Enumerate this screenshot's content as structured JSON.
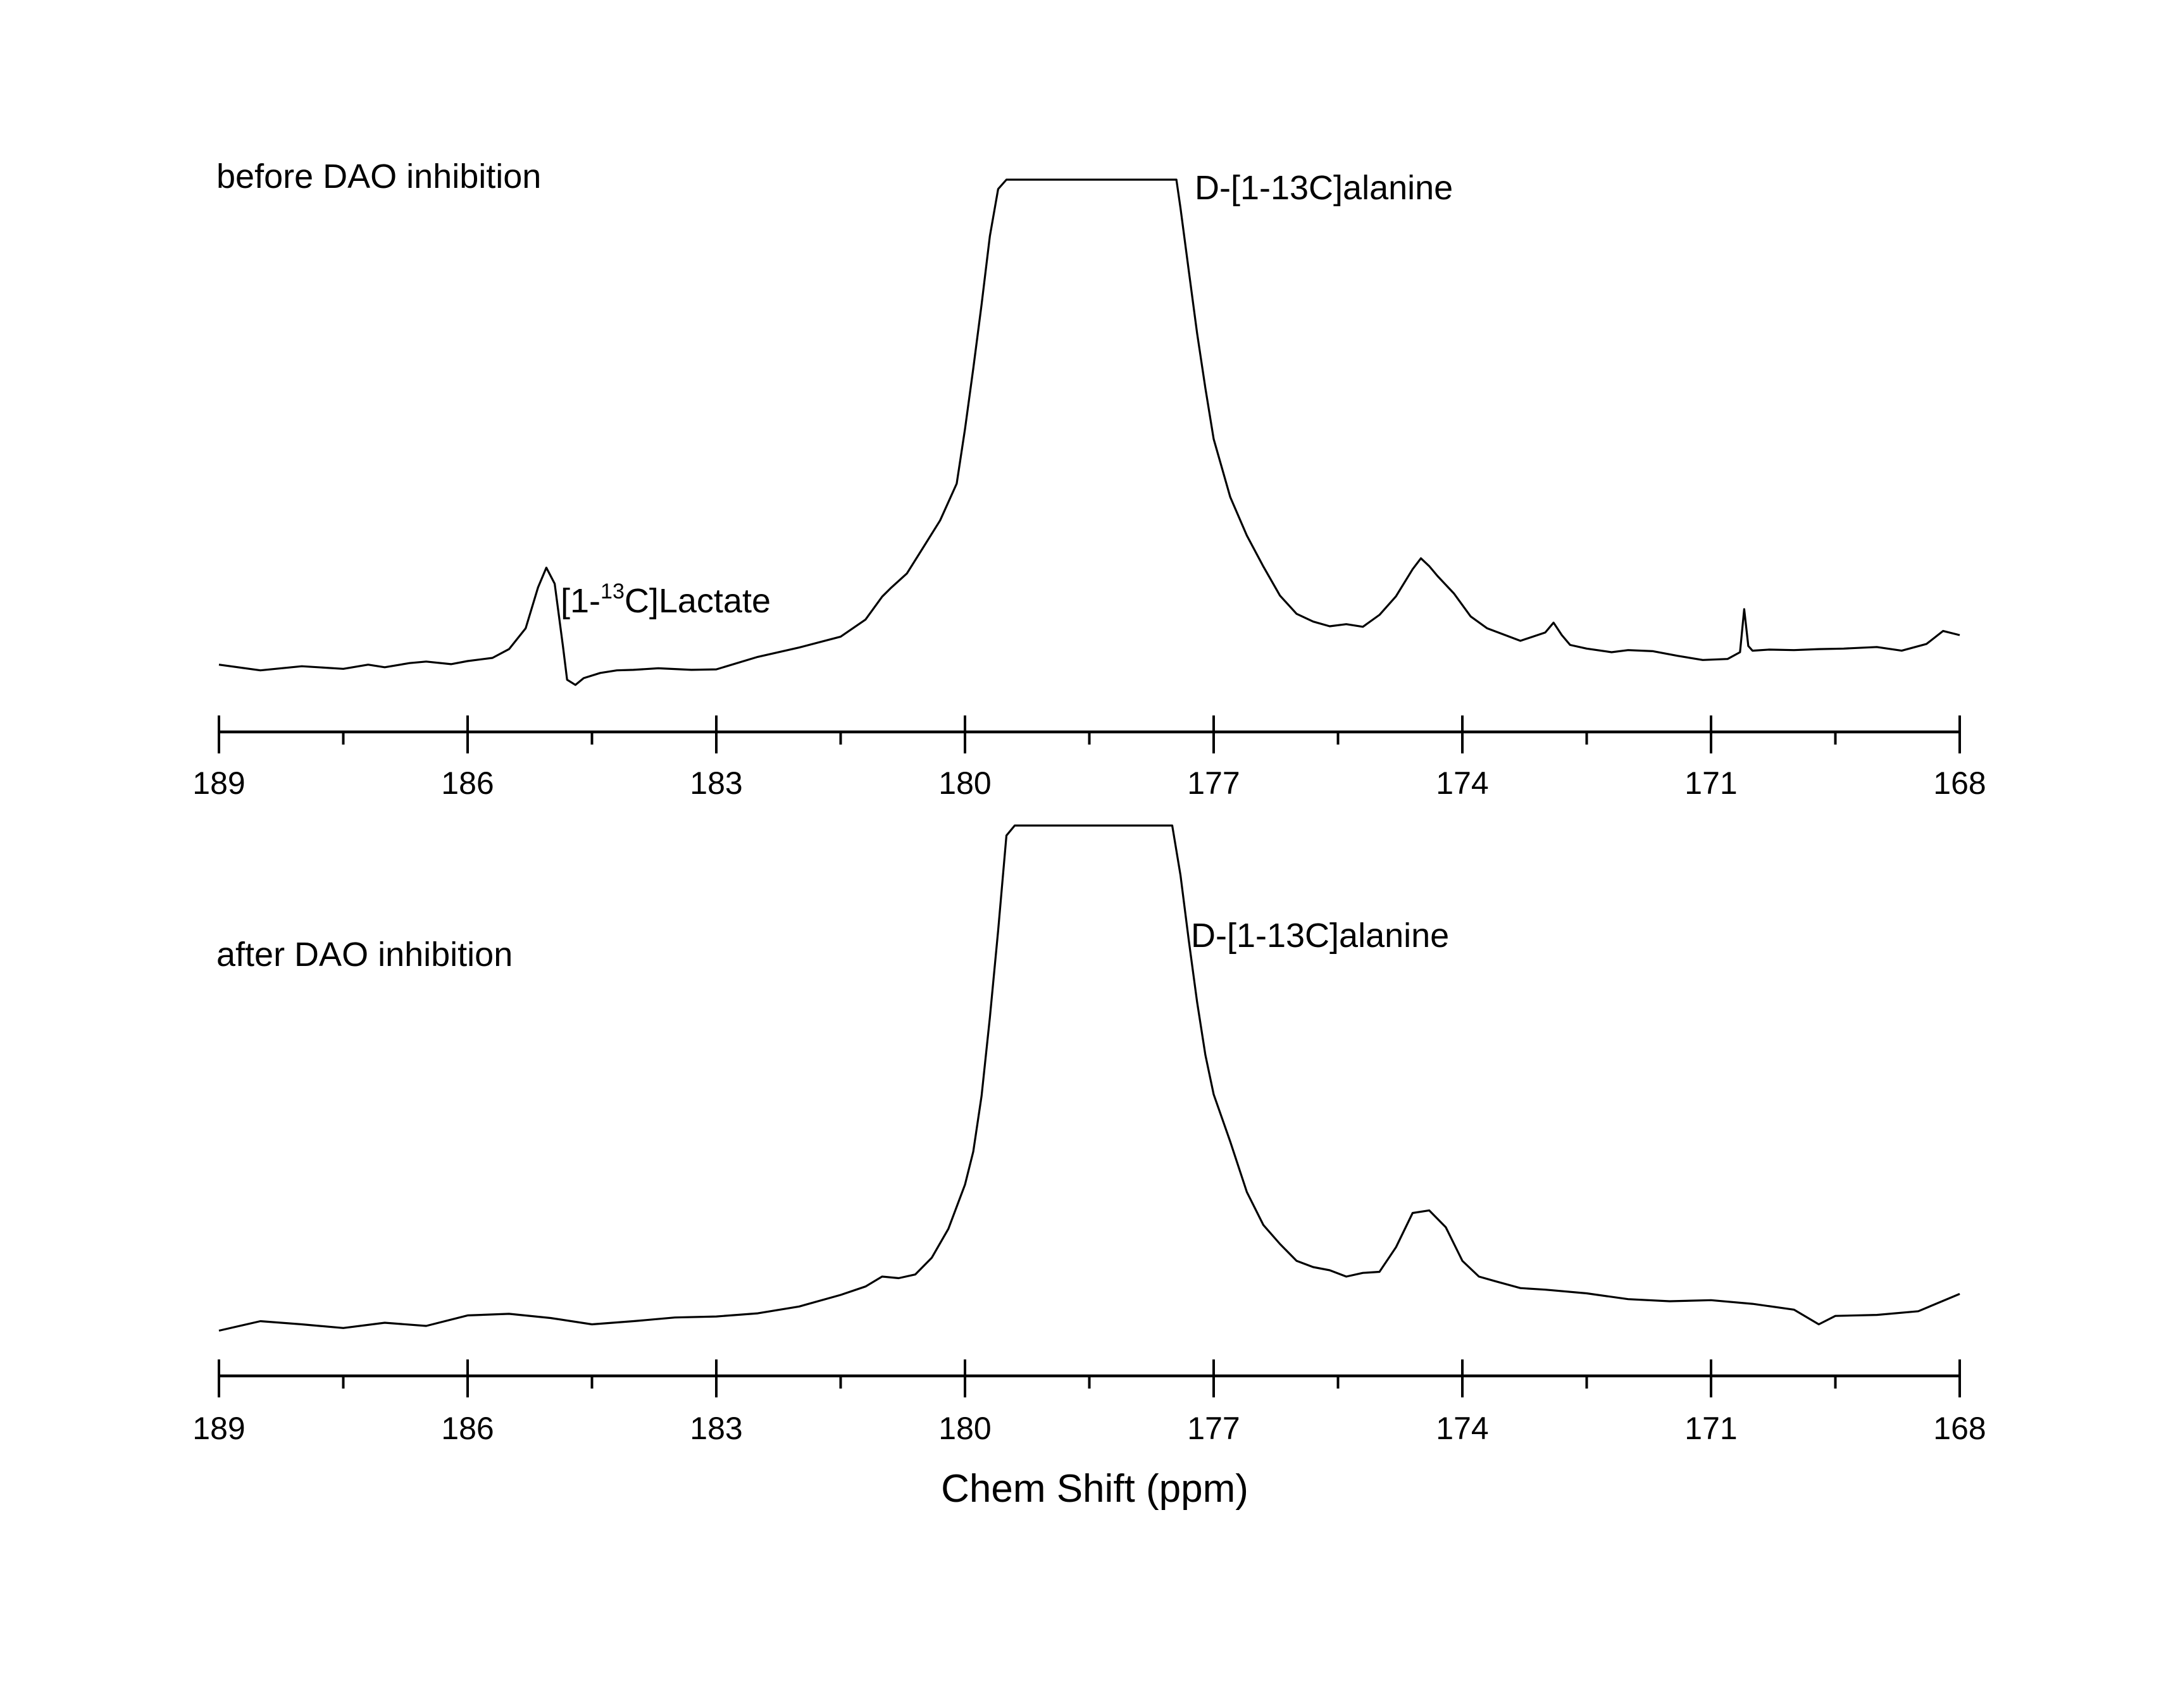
{
  "chart_data": [
    {
      "type": "line",
      "title": "before DAO inhibition",
      "xlabel": "",
      "ylabel": "",
      "x_reversed": true,
      "xlim": [
        189,
        168
      ],
      "x_ticks": [
        189,
        186,
        183,
        180,
        177,
        174,
        171,
        168
      ],
      "x_tick_labels": [
        "189",
        "186",
        "183",
        "180",
        "177",
        "174",
        "171",
        "168"
      ],
      "x_minor_step": 1.5,
      "y_axis_visible": false,
      "y_clipped": true,
      "ylim": [
        0,
        100
      ],
      "annotations": [
        {
          "id": "lactate",
          "prefix": "[1-",
          "sup": "13",
          "suffix": "C]Lactate",
          "x": 185.0
        },
        {
          "id": "alanine",
          "text": "D-[1-13C]alanine",
          "x": 177.0
        }
      ],
      "series": [
        {
          "x": [
            189.0,
            188.5,
            188.0,
            187.5,
            187.2,
            187.0,
            186.7,
            186.5,
            186.2,
            186.0,
            185.7,
            185.5,
            185.3,
            185.15,
            185.05,
            184.95,
            184.85,
            184.8,
            184.7,
            184.6,
            184.4,
            184.2,
            184.0,
            183.7,
            183.3,
            183.0,
            182.5,
            182.0,
            181.5,
            181.2,
            181.0,
            180.9,
            180.7,
            180.5,
            180.3,
            180.1,
            180.0,
            179.9,
            179.8,
            179.7,
            179.6,
            179.5,
            179.45,
            179.4,
            177.55,
            177.5,
            177.45,
            177.4,
            177.3,
            177.2,
            177.1,
            177.0,
            176.8,
            176.6,
            176.4,
            176.2,
            176.0,
            175.8,
            175.6,
            175.4,
            175.2,
            175.0,
            174.8,
            174.6,
            174.5,
            174.4,
            174.3,
            174.1,
            173.9,
            173.7,
            173.5,
            173.3,
            173.0,
            172.9,
            172.8,
            172.7,
            172.5,
            172.2,
            172.0,
            171.7,
            171.4,
            171.1,
            170.8,
            170.65,
            170.6,
            170.55,
            170.5,
            170.3,
            170.0,
            169.7,
            169.4,
            169.0,
            168.7,
            168.4,
            168.2,
            168.0
          ],
          "y": [
            6.5,
            5.4,
            6.2,
            5.7,
            6.5,
            6.0,
            6.8,
            7.1,
            6.6,
            7.2,
            7.8,
            9.5,
            13.5,
            21.4,
            25.2,
            22.1,
            10.0,
            3.6,
            2.6,
            3.9,
            4.9,
            5.4,
            5.5,
            5.8,
            5.5,
            5.6,
            8.0,
            9.8,
            11.9,
            15.2,
            19.6,
            21.2,
            24.1,
            29.2,
            34.3,
            41.4,
            51.9,
            63.6,
            75.9,
            89.1,
            98.2,
            100,
            100,
            100,
            100,
            100,
            100,
            94.5,
            82.4,
            70.4,
            59.8,
            50.0,
            38.8,
            31.4,
            25.4,
            19.8,
            16.3,
            14.8,
            13.9,
            14.3,
            13.8,
            16.1,
            19.7,
            24.9,
            27.0,
            25.5,
            23.6,
            20.2,
            15.8,
            13.5,
            12.3,
            11.1,
            12.7,
            14.6,
            12.2,
            10.3,
            9.6,
            8.9,
            9.3,
            9.1,
            8.2,
            7.4,
            7.6,
            8.9,
            17.2,
            10.1,
            9.2,
            9.4,
            9.3,
            9.5,
            9.6,
            9.9,
            9.2,
            10.5,
            13.0,
            12.2
          ]
        }
      ]
    },
    {
      "type": "line",
      "title": "after DAO inhibition",
      "xlabel": "Chem Shift (ppm)",
      "ylabel": "",
      "x_reversed": true,
      "xlim": [
        189,
        168
      ],
      "x_ticks": [
        189,
        186,
        183,
        180,
        177,
        174,
        171,
        168
      ],
      "x_tick_labels": [
        "189",
        "186",
        "183",
        "180",
        "177",
        "174",
        "171",
        "168"
      ],
      "x_minor_step": 1.5,
      "y_axis_visible": false,
      "y_clipped": true,
      "ylim": [
        0,
        100
      ],
      "annotations": [
        {
          "id": "alanine",
          "text": "D-[1-13C]alanine",
          "x": 177.0
        }
      ],
      "series": [
        {
          "x": [
            189.0,
            188.5,
            188.0,
            187.5,
            187.0,
            186.5,
            186.0,
            185.5,
            185.0,
            184.5,
            184.0,
            183.5,
            183.0,
            182.5,
            182.0,
            181.5,
            181.2,
            181.0,
            180.8,
            180.6,
            180.4,
            180.2,
            180.0,
            179.9,
            179.8,
            179.7,
            179.6,
            179.5,
            179.4,
            179.35,
            177.6,
            177.55,
            177.5,
            177.4,
            177.3,
            177.2,
            177.1,
            177.0,
            176.8,
            176.6,
            176.4,
            176.2,
            176.0,
            175.8,
            175.6,
            175.4,
            175.2,
            175.0,
            174.8,
            174.6,
            174.4,
            174.2,
            174.0,
            173.8,
            173.6,
            173.3,
            173.0,
            172.5,
            172.0,
            171.5,
            171.0,
            170.5,
            170.0,
            169.7,
            169.5,
            169.0,
            168.5,
            168.0
          ],
          "y": [
            3.8,
            5.6,
            5.0,
            4.3,
            5.3,
            4.7,
            6.7,
            7.0,
            6.2,
            5.0,
            5.6,
            6.3,
            6.5,
            7.1,
            8.4,
            10.6,
            12.2,
            14.1,
            13.8,
            14.5,
            17.7,
            23.2,
            31.6,
            37.9,
            48.5,
            63.4,
            80.0,
            98.1,
            100,
            100,
            100,
            100,
            100,
            90.5,
            78.1,
            66.4,
            56.3,
            48.8,
            39.8,
            30.2,
            23.9,
            20.3,
            17.1,
            15.9,
            15.3,
            14.1,
            14.8,
            15.0,
            19.7,
            26.2,
            26.7,
            23.5,
            17.1,
            14.1,
            13.2,
            11.9,
            11.6,
            10.9,
            9.8,
            9.4,
            9.6,
            8.9,
            7.8,
            5.0,
            6.6,
            6.8,
            7.5,
            10.8
          ]
        }
      ]
    }
  ]
}
